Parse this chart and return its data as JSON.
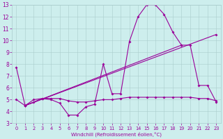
{
  "xlabel": "Windchill (Refroidissement éolien,°C)",
  "xlim": [
    -0.5,
    23.5
  ],
  "ylim": [
    3,
    13
  ],
  "yticks": [
    3,
    4,
    5,
    6,
    7,
    8,
    9,
    10,
    11,
    12,
    13
  ],
  "xticks": [
    0,
    1,
    2,
    3,
    4,
    5,
    6,
    7,
    8,
    9,
    10,
    11,
    12,
    13,
    14,
    15,
    16,
    17,
    18,
    19,
    20,
    21,
    22,
    23
  ],
  "bg_color": "#cdeeed",
  "line_color": "#990099",
  "grid_color": "#aacccc",
  "series1_x": [
    0,
    1,
    2,
    3,
    4,
    5,
    6,
    7,
    8,
    9,
    10,
    11,
    12,
    13,
    14,
    15,
    16,
    17,
    18,
    19,
    20,
    21,
    22,
    23
  ],
  "series1_y": [
    7.7,
    4.5,
    5.0,
    5.1,
    5.0,
    4.7,
    3.7,
    3.7,
    4.4,
    4.6,
    8.0,
    5.5,
    5.5,
    9.9,
    12.0,
    13.0,
    13.0,
    12.2,
    10.7,
    9.6,
    9.6,
    6.2,
    6.2,
    4.8
  ],
  "series2_x": [
    0,
    1,
    2,
    3,
    4,
    5,
    6,
    7,
    8,
    9,
    10,
    11,
    12,
    13,
    14,
    15,
    16,
    17,
    18,
    19,
    20,
    21,
    22,
    23
  ],
  "series2_y": [
    5.0,
    4.5,
    4.8,
    5.1,
    5.1,
    5.1,
    4.9,
    4.8,
    4.8,
    4.9,
    5.0,
    5.0,
    5.1,
    5.2,
    5.2,
    5.2,
    5.2,
    5.2,
    5.2,
    5.2,
    5.2,
    5.1,
    5.1,
    4.9
  ],
  "series3_x": [
    1,
    23
  ],
  "series3_y": [
    4.5,
    10.5
  ],
  "series4_x": [
    1,
    19
  ],
  "series4_y": [
    4.5,
    9.6
  ]
}
